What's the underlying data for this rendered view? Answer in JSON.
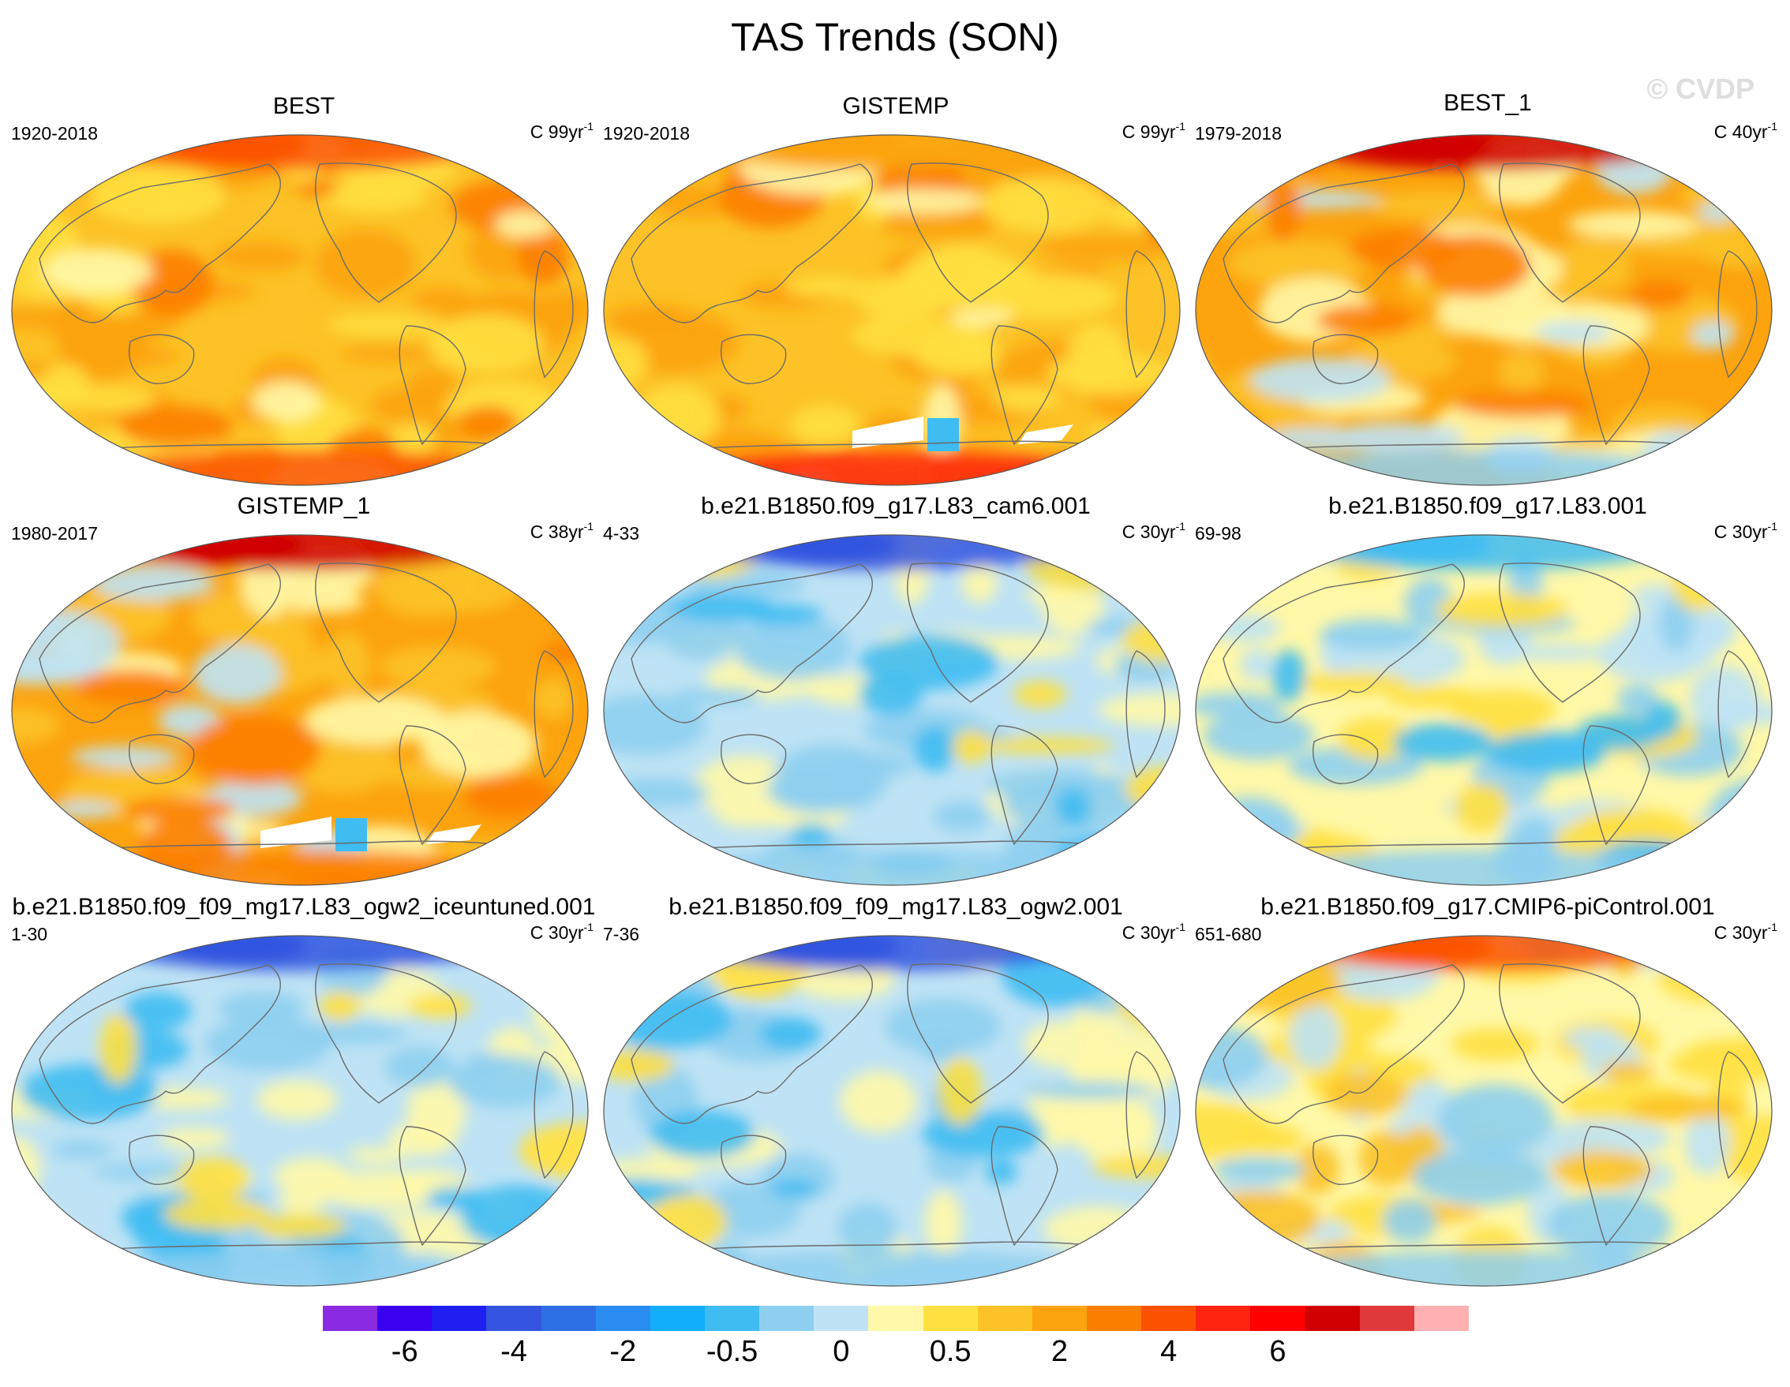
{
  "title": "TAS Trends (SON)",
  "watermark": "© CVDP",
  "units_prefix": "C ",
  "units_suffix": "yr",
  "units_exponent": "-1",
  "panels": [
    {
      "title": "BEST",
      "period": "1920-2018",
      "units_number": "99",
      "theme": "warm"
    },
    {
      "title": "GISTEMP",
      "period": "1920-2018",
      "units_number": "99",
      "theme": "warm_gap"
    },
    {
      "title": "BEST_1",
      "period": "1979-2018",
      "units_number": "40",
      "theme": "warm_strong"
    },
    {
      "title": "GISTEMP_1",
      "period": "1980-2017",
      "units_number": "38",
      "theme": "warm_strong_gap"
    },
    {
      "title": "b.e21.B1850.f09_g17.L83_cam6.001",
      "period": "4-33",
      "units_number": "30",
      "theme": "cool"
    },
    {
      "title": "b.e21.B1850.f09_g17.L83.001",
      "period": "69-98",
      "units_number": "30",
      "theme": "mixed"
    },
    {
      "title": "b.e21.B1850.f09_f09_mg17.L83_ogw2_iceuntuned.001",
      "period": "1-30",
      "units_number": "30",
      "theme": "cool"
    },
    {
      "title": "b.e21.B1850.f09_f09_mg17.L83_ogw2.001",
      "period": "7-36",
      "units_number": "30",
      "theme": "cool"
    },
    {
      "title": "b.e21.B1850.f09_g17.CMIP6-piControl.001",
      "period": "651-680",
      "units_number": "30",
      "theme": "mixed_warm"
    }
  ],
  "colorbar": {
    "colors": [
      "#8a2be2",
      "#3a00f0",
      "#1f1ff2",
      "#3355e0",
      "#2e6fe6",
      "#2a8cf0",
      "#12aefa",
      "#3fbcf2",
      "#8ecff0",
      "#bfe3f5",
      "#fff8a8",
      "#ffe040",
      "#fcc227",
      "#fca30e",
      "#fc7e00",
      "#fc5200",
      "#ff2410",
      "#ff0000",
      "#d00000",
      "#e03a3a",
      "#ffb0b0"
    ],
    "labels": [
      "-6",
      "-4",
      "-2",
      "-0.5",
      "0",
      "0.5",
      "2",
      "4",
      "6"
    ],
    "label_values": [
      -6,
      -4,
      -2,
      -0.5,
      0,
      0.5,
      2,
      4,
      6
    ]
  },
  "palettes": {
    "ocean_outline": "#555555",
    "land_outline": "#6b6b6b"
  }
}
